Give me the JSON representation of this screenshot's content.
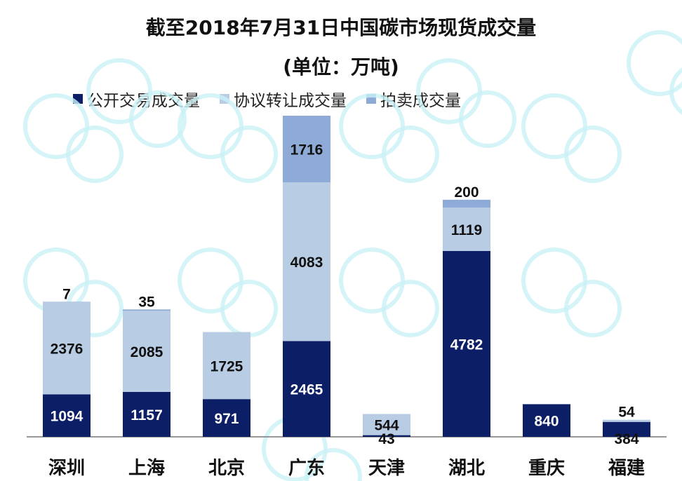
{
  "chart_data": {
    "type": "bar",
    "stacked": true,
    "title": "截至2018年7月31日中国碳市场现货成交量",
    "subtitle": "(单位：万吨)",
    "xlabel": "",
    "ylabel": "",
    "ylim": [
      0,
      8264
    ],
    "grid": false,
    "legend_position": "top",
    "categories": [
      "深圳",
      "上海",
      "北京",
      "广东",
      "天津",
      "湖北",
      "重庆",
      "福建"
    ],
    "series": [
      {
        "name": "公开交易成交量",
        "color": "#0c1f66",
        "label_color": "#ffffff",
        "values": [
          1094,
          1157,
          971,
          2465,
          43,
          4782,
          840,
          384
        ]
      },
      {
        "name": "协议转让成交量",
        "color": "#b8cce4",
        "label_color": "#111111",
        "values": [
          2376,
          2085,
          1725,
          4083,
          544,
          1119,
          0,
          54
        ]
      },
      {
        "name": "拍卖成交量",
        "color": "#8eaad6",
        "label_color": "#111111",
        "values": [
          7,
          35,
          0,
          1716,
          0,
          200,
          0,
          0
        ]
      }
    ]
  }
}
